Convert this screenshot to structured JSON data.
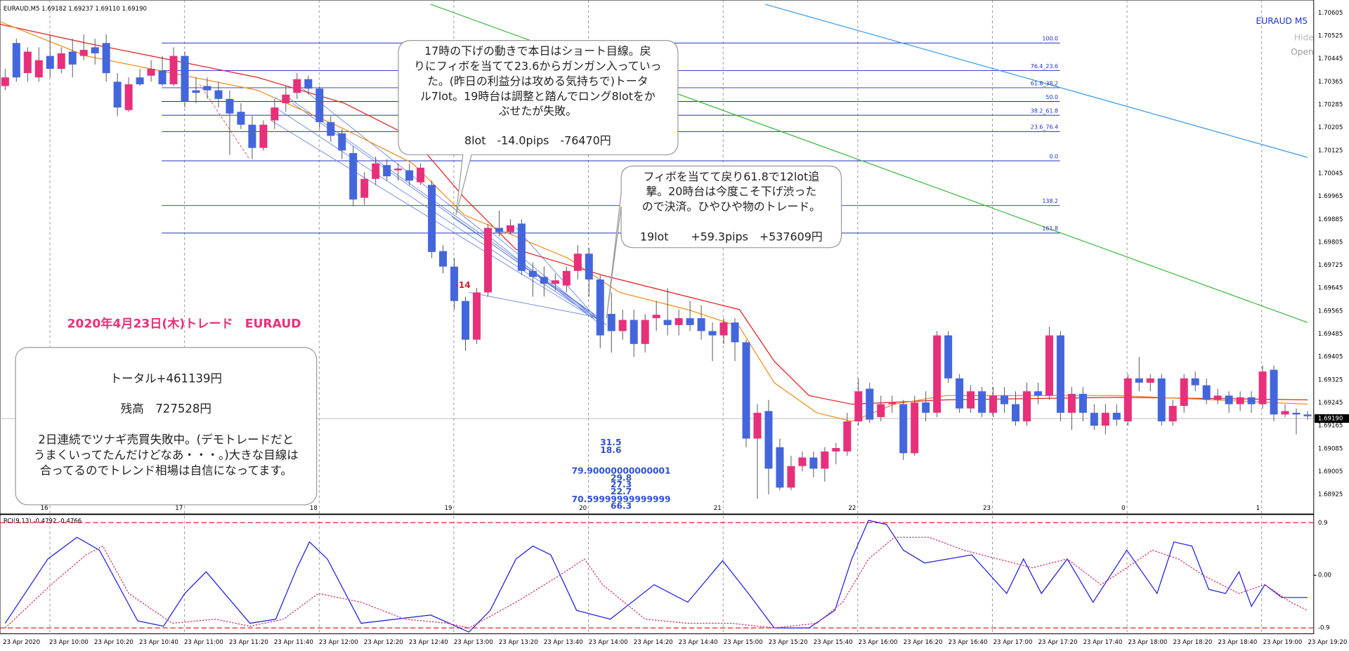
{
  "header": {
    "symbol_line": "EURAUD,M5  1.69182 1.69237 1.69110 1.69190",
    "symbol": "EURAUD M5",
    "hide": "Hide",
    "open": "Open"
  },
  "chart_data": {
    "type": "candlestick",
    "up_color": "#e8307a",
    "down_color": "#4466dd",
    "ylim": [
      1.68859,
      1.7065
    ],
    "yticks": [
      1.70605,
      1.70525,
      1.70445,
      1.70365,
      1.70285,
      1.70205,
      1.70125,
      1.70045,
      1.69965,
      1.69885,
      1.69805,
      1.69725,
      1.69645,
      1.69565,
      1.69485,
      1.69405,
      1.69325,
      1.69245,
      1.69165,
      1.69085,
      1.69005,
      1.68925
    ],
    "current_price": {
      "value": 1.6919,
      "label": "1.69190"
    },
    "time_labels": [
      "23 Apr 2020",
      "23 Apr 10:00",
      "23 Apr 10:20",
      "23 Apr 10:40",
      "23 Apr 11:00",
      "23 Apr 11:20",
      "23 Apr 11:40",
      "23 Apr 12:00",
      "23 Apr 12:20",
      "23 Apr 12:40",
      "23 Apr 13:00",
      "23 Apr 13:20",
      "23 Apr 13:40",
      "23 Apr 14:00",
      "23 Apr 14:20",
      "23 Apr 14:40",
      "23 Apr 15:00",
      "23 Apr 15:20",
      "23 Apr 15:40",
      "23 Apr 16:00",
      "23 Apr 16:20",
      "23 Apr 16:40",
      "23 Apr 17:00",
      "23 Apr 17:20",
      "23 Apr 17:40",
      "23 Apr 18:00",
      "23 Apr 18:20",
      "23 Apr 18:40",
      "23 Apr 19:00",
      "23 Apr 19:20"
    ],
    "separators": [
      "16",
      "17",
      "18",
      "19",
      "20",
      "21",
      "22",
      "23",
      "0",
      "1"
    ],
    "candles": [
      [
        1.7035,
        1.7041,
        1.70335,
        1.7038
      ],
      [
        1.705,
        1.70515,
        1.70365,
        1.7038
      ],
      [
        1.70395,
        1.70485,
        1.70365,
        1.7047
      ],
      [
        1.7038,
        1.70485,
        1.70365,
        1.7044
      ],
      [
        1.70455,
        1.7053,
        1.7038,
        1.7041
      ],
      [
        1.7041,
        1.70485,
        1.70395,
        1.70464
      ],
      [
        1.7047,
        1.70515,
        1.7038,
        1.70425
      ],
      [
        1.70455,
        1.7053,
        1.7044,
        1.70476
      ],
      [
        1.70485,
        1.70515,
        1.70425,
        1.70464
      ],
      [
        1.705,
        1.7053,
        1.70365,
        1.70395
      ],
      [
        1.70365,
        1.70395,
        1.70245,
        1.70275
      ],
      [
        1.70266,
        1.7038,
        1.7026,
        1.70356
      ],
      [
        1.7038,
        1.7041,
        1.7035,
        1.70356
      ],
      [
        1.70386,
        1.7044,
        1.70365,
        1.7041
      ],
      [
        1.70404,
        1.70455,
        1.7035,
        1.70356
      ],
      [
        1.70356,
        1.70485,
        1.7035,
        1.70455
      ],
      [
        1.70455,
        1.7047,
        1.70275,
        1.70296
      ],
      [
        1.70335,
        1.7038,
        1.7029,
        1.70326
      ],
      [
        1.7035,
        1.7038,
        1.70305,
        1.70335
      ],
      [
        1.70335,
        1.70365,
        1.70275,
        1.70305
      ],
      [
        1.70305,
        1.70335,
        1.7011,
        1.70254
      ],
      [
        1.7026,
        1.7029,
        1.702,
        1.70215
      ],
      [
        1.70215,
        1.70245,
        1.70095,
        1.70134
      ],
      [
        1.70134,
        1.7023,
        1.70125,
        1.70215
      ],
      [
        1.7023,
        1.70305,
        1.702,
        1.70275
      ],
      [
        1.7029,
        1.7035,
        1.7026,
        1.7032
      ],
      [
        1.70326,
        1.70395,
        1.70305,
        1.70374
      ],
      [
        1.70374,
        1.70386,
        1.7032,
        1.70341
      ],
      [
        1.70341,
        1.7035,
        1.702,
        1.70224
      ],
      [
        1.70224,
        1.70245,
        1.70155,
        1.70176
      ],
      [
        1.70185,
        1.702,
        1.70095,
        1.70125
      ],
      [
        1.70116,
        1.7014,
        1.6993,
        1.69954
      ],
      [
        1.6996,
        1.7005,
        1.69936,
        1.70026
      ],
      [
        1.70026,
        1.70104,
        1.70005,
        1.7008
      ],
      [
        1.70074,
        1.70095,
        1.7002,
        1.70035
      ],
      [
        1.70056,
        1.7008,
        1.7002,
        1.70062
      ],
      [
        1.70056,
        1.7008,
        1.70005,
        1.7002
      ],
      [
        1.70014,
        1.7008,
        1.70005,
        1.70065
      ],
      [
        1.70005,
        1.7002,
        1.6975,
        1.69771
      ],
      [
        1.69774,
        1.69795,
        1.69696,
        1.6972
      ],
      [
        1.6972,
        1.6975,
        1.6957,
        1.696
      ],
      [
        1.696,
        1.69615,
        1.69426,
        1.69465
      ],
      [
        1.69465,
        1.69645,
        1.6945,
        1.6963
      ],
      [
        1.6963,
        1.6987,
        1.69615,
        1.69855
      ],
      [
        1.69855,
        1.69915,
        1.69825,
        1.6984
      ],
      [
        1.6984,
        1.69885,
        1.69834,
        1.69864
      ],
      [
        1.6987,
        1.69885,
        1.6969,
        1.69705
      ],
      [
        1.69705,
        1.69735,
        1.69615,
        1.69684
      ],
      [
        1.69684,
        1.6972,
        1.69615,
        1.6966
      ],
      [
        1.6966,
        1.69696,
        1.69636,
        1.69672
      ],
      [
        1.69654,
        1.6972,
        1.6963,
        1.69705
      ],
      [
        1.69705,
        1.69795,
        1.69675,
        1.69765
      ],
      [
        1.69765,
        1.69786,
        1.69615,
        1.69675
      ],
      [
        1.69675,
        1.6969,
        1.69435,
        1.6948
      ],
      [
        1.69555,
        1.6963,
        1.6942,
        1.69495
      ],
      [
        1.69495,
        1.6957,
        1.69465,
        1.69534
      ],
      [
        1.69534,
        1.6957,
        1.69405,
        1.6945
      ],
      [
        1.6945,
        1.69555,
        1.6942,
        1.69534
      ],
      [
        1.6954,
        1.696,
        1.69495,
        1.69552
      ],
      [
        1.69534,
        1.69645,
        1.6948,
        1.69516
      ],
      [
        1.69516,
        1.6957,
        1.6948,
        1.6954
      ],
      [
        1.6954,
        1.696,
        1.69495,
        1.69516
      ],
      [
        1.6954,
        1.69585,
        1.69465,
        1.69495
      ],
      [
        1.69495,
        1.69525,
        1.6939,
        1.6948
      ],
      [
        1.6948,
        1.6954,
        1.6945,
        1.69525
      ],
      [
        1.69525,
        1.6954,
        1.6939,
        1.69456
      ],
      [
        1.69456,
        1.69465,
        1.6909,
        1.6912
      ],
      [
        1.6912,
        1.6924,
        1.6891,
        1.6921
      ],
      [
        1.69216,
        1.69255,
        1.68925,
        1.69015
      ],
      [
        1.6909,
        1.6912,
        1.6894,
        1.68949
      ],
      [
        1.68949,
        1.6906,
        1.6894,
        1.69024
      ],
      [
        1.69024,
        1.69075,
        1.69006,
        1.69054
      ],
      [
        1.69054,
        1.69075,
        1.68985,
        1.69015
      ],
      [
        1.69015,
        1.6909,
        1.6897,
        1.69075
      ],
      [
        1.69075,
        1.69105,
        1.6903,
        1.69087
      ],
      [
        1.69075,
        1.6921,
        1.6906,
        1.6918
      ],
      [
        1.6918,
        1.6933,
        1.69165,
        1.69285
      ],
      [
        1.69294,
        1.69315,
        1.69174,
        1.69186
      ],
      [
        1.69195,
        1.6927,
        1.6918,
        1.6924
      ],
      [
        1.6924,
        1.6927,
        1.6921,
        1.69246
      ],
      [
        1.6924,
        1.69255,
        1.69045,
        1.69069
      ],
      [
        1.69069,
        1.6927,
        1.6906,
        1.69246
      ],
      [
        1.69246,
        1.69285,
        1.6918,
        1.6921
      ],
      [
        1.6921,
        1.69495,
        1.69195,
        1.6948
      ],
      [
        1.6948,
        1.69495,
        1.69315,
        1.6933
      ],
      [
        1.6933,
        1.69345,
        1.6921,
        1.69225
      ],
      [
        1.69225,
        1.69306,
        1.6921,
        1.69285
      ],
      [
        1.69285,
        1.693,
        1.69195,
        1.6921
      ],
      [
        1.6921,
        1.693,
        1.69195,
        1.6927
      ],
      [
        1.6927,
        1.693,
        1.6921,
        1.6924
      ],
      [
        1.6924,
        1.69285,
        1.69165,
        1.6918
      ],
      [
        1.6918,
        1.69315,
        1.69165,
        1.69285
      ],
      [
        1.69285,
        1.69315,
        1.6924,
        1.6927
      ],
      [
        1.6927,
        1.6951,
        1.69255,
        1.6948
      ],
      [
        1.6948,
        1.69495,
        1.6918,
        1.6921
      ],
      [
        1.6921,
        1.693,
        1.6915,
        1.69276
      ],
      [
        1.69276,
        1.693,
        1.6918,
        1.6921
      ],
      [
        1.6921,
        1.6924,
        1.6915,
        1.69165
      ],
      [
        1.69165,
        1.6924,
        1.69135,
        1.6921
      ],
      [
        1.6921,
        1.6924,
        1.69165,
        1.69186
      ],
      [
        1.6918,
        1.69345,
        1.69165,
        1.6933
      ],
      [
        1.6933,
        1.69405,
        1.69285,
        1.69315
      ],
      [
        1.69315,
        1.69345,
        1.69285,
        1.6933
      ],
      [
        1.6933,
        1.69345,
        1.69165,
        1.6918
      ],
      [
        1.6918,
        1.69255,
        1.69165,
        1.69234
      ],
      [
        1.69234,
        1.69345,
        1.6921,
        1.6933
      ],
      [
        1.6933,
        1.69354,
        1.69285,
        1.69306
      ],
      [
        1.69306,
        1.6933,
        1.6924,
        1.69255
      ],
      [
        1.69255,
        1.69294,
        1.6924,
        1.6927
      ],
      [
        1.6927,
        1.69285,
        1.6921,
        1.6924
      ],
      [
        1.6924,
        1.69285,
        1.69216,
        1.69264
      ],
      [
        1.69264,
        1.69285,
        1.6921,
        1.6924
      ],
      [
        1.6924,
        1.69375,
        1.69225,
        1.69354
      ],
      [
        1.6936,
        1.69375,
        1.6918,
        1.69204
      ],
      [
        1.69204,
        1.6924,
        1.69195,
        1.69216
      ],
      [
        1.6921,
        1.69225,
        1.69135,
        1.69204
      ],
      [
        1.69204,
        1.69216,
        1.69186,
        1.69198
      ]
    ],
    "lines": [
      {
        "color": "#e02020",
        "x": [
          -0.5,
          7.2,
          14.9,
          22.5,
          30.2,
          36.3,
          40.9,
          45.5,
          53.2,
          60.8,
          65.4,
          68.5,
          71.6,
          75.4,
          83.8,
          99.2,
          116
        ],
        "values": [
          1.70566,
          1.705,
          1.7044,
          1.7038,
          1.7029,
          1.7017,
          1.6996,
          1.6978,
          1.6969,
          1.69615,
          1.6957,
          1.6939,
          1.6927,
          1.6924,
          1.69255,
          1.69264,
          1.69255
        ]
      },
      {
        "color": "#f08c1a",
        "x": [
          -0.5,
          7.2,
          14.9,
          22.5,
          30.2,
          36.3,
          40.9,
          45.5,
          50.1,
          54.7,
          60.8,
          65.4,
          68.5,
          72.3,
          75.4,
          79.2,
          83.8,
          99.2,
          116
        ],
        "values": [
          1.70575,
          1.70455,
          1.70395,
          1.70335,
          1.702,
          1.7008,
          1.699,
          1.69825,
          1.6975,
          1.6963,
          1.6957,
          1.6951,
          1.69315,
          1.6921,
          1.6918,
          1.6924,
          1.6927,
          1.6927,
          1.6924
        ]
      },
      {
        "color": "#3cb83c",
        "x": [
          37.9,
          116
        ],
        "values": [
          1.70635,
          1.69525
        ]
      },
      {
        "color": "#3a9ae8",
        "x": [
          67.7,
          116
        ],
        "values": [
          1.70635,
          1.70101
        ]
      }
    ],
    "fib": [
      {
        "label": "100.0",
        "value": 1.705
      },
      {
        "label": "76.4_23.6",
        "value": 1.70404
      },
      {
        "label": "61.8_38.2",
        "value": 1.70344
      },
      {
        "label": "50.0",
        "value": 1.70296
      },
      {
        "label": "38.2_61.8",
        "value": 1.70248
      },
      {
        "label": "23.6_76.4",
        "value": 1.70191
      },
      {
        "label": "0.0",
        "value": 1.70089
      },
      {
        "label": "138.2",
        "value": 1.69933
      },
      {
        "label": "161.8",
        "value": 1.69837
      }
    ]
  },
  "rci": {
    "label": "RCI(9,13) -0.4792 -0.4766",
    "ylim": [
      -1,
      1
    ],
    "yticks": [
      0.9,
      {
        "value": 0,
        "label": "0.00"
      },
      -0.9
    ],
    "level_color": "#e02020",
    "series": [
      {
        "color": "#1a1ae0",
        "x": [
          0,
          3.8,
          6.4,
          8.4,
          11.8,
          14.1,
          16,
          17.9,
          21.8,
          24.1,
          26,
          27.1,
          28.7,
          31.7,
          37.9,
          41.3,
          43.2,
          45.5,
          47,
          48.6,
          50.9,
          53.9,
          57.8,
          60.8,
          63.9,
          66.2,
          68.5,
          71.6,
          73.9,
          75.4,
          76.9,
          78.5,
          80,
          81.9,
          86.1,
          89.2,
          90.7,
          92.3,
          94.6,
          96.9,
          99.9,
          102.6,
          104.1,
          105.7,
          107.2,
          108.7,
          109.9,
          111,
          112.2,
          113.7,
          116
        ],
        "values": [
          -0.82,
          0.28,
          0.65,
          0.43,
          -0.78,
          -0.87,
          -0.31,
          0.06,
          -0.82,
          -0.75,
          0.13,
          0.57,
          0.28,
          -0.82,
          -0.68,
          -0.97,
          -0.6,
          0.28,
          0.5,
          0.35,
          -0.6,
          -0.75,
          -0.16,
          -0.46,
          0.25,
          -0.31,
          -0.9,
          -0.9,
          -0.6,
          0.28,
          0.94,
          0.87,
          0.43,
          0.21,
          0.35,
          -0.31,
          0.28,
          -0.31,
          0.28,
          -0.46,
          0.43,
          -0.31,
          0.57,
          0.5,
          -0.24,
          -0.31,
          0.06,
          -0.53,
          -0.16,
          -0.38,
          -0.38
        ]
      },
      {
        "color": "#d0306a",
        "dashed": true,
        "x": [
          0,
          4.1,
          7.2,
          8.7,
          11,
          14.9,
          18.7,
          21.8,
          24.8,
          27.9,
          31.7,
          35.6,
          39.4,
          41.3,
          45.5,
          49.3,
          51.6,
          53.2,
          57,
          60.8,
          64.7,
          68.5,
          72.3,
          74.6,
          76.9,
          79.2,
          82.3,
          85.4,
          88.4,
          91.5,
          94.6,
          97.6,
          99.9,
          102.2,
          104.5,
          106.8,
          109.9,
          112.2,
          114.5,
          116
        ],
        "values": [
          -0.9,
          -0.16,
          0.35,
          0.5,
          -0.31,
          -0.82,
          -0.75,
          -0.87,
          -0.75,
          -0.31,
          -0.46,
          -0.75,
          -0.82,
          -0.9,
          -0.46,
          -0.01,
          0.28,
          -0.16,
          -0.75,
          -0.82,
          -0.82,
          -0.9,
          -0.82,
          -0.46,
          0.28,
          0.65,
          0.65,
          0.43,
          0.28,
          0.13,
          0.28,
          -0.16,
          0.13,
          0.43,
          0.28,
          -0.01,
          -0.31,
          -0.16,
          -0.46,
          -0.6
        ]
      }
    ]
  },
  "annotations": {
    "title": "2020年4月23日(木)トレード　EURAUD",
    "callout1": [
      "17時の下げの動きで本日はショート目線。戻",
      "りにフィボを当てて23.6からガンガン入っていっ",
      "た。(昨日の利益分は攻める気持ちで)トータ",
      "ル7lot。19時台は調整と踏んでロング8lotをか",
      "ぶせたが失敗。",
      "8lot　-14.0pips　-76470円"
    ],
    "callout2": [
      "フィボを当てて戻り61.8で12lot追",
      "撃。20時台は今度こそ下げ渋った",
      "ので決済。ひやひや物のトレード。",
      "19lot　　+59.3pips　+537609円"
    ],
    "summary": [
      "トータル+461139円",
      "残高　727528円",
      "2日連続でツナギ売買失敗中。(デモトレードだと",
      "うまくいってたんだけどなあ・・・。)大きな目線は",
      "合ってるのでトレンド相場は自信になってます。"
    ],
    "marker": "-14",
    "numbers": [
      "31.5",
      "18.6",
      "79.90000000000001",
      "29.8",
      "27.3",
      "22.7",
      "70.59999999999999",
      "66.3"
    ]
  }
}
